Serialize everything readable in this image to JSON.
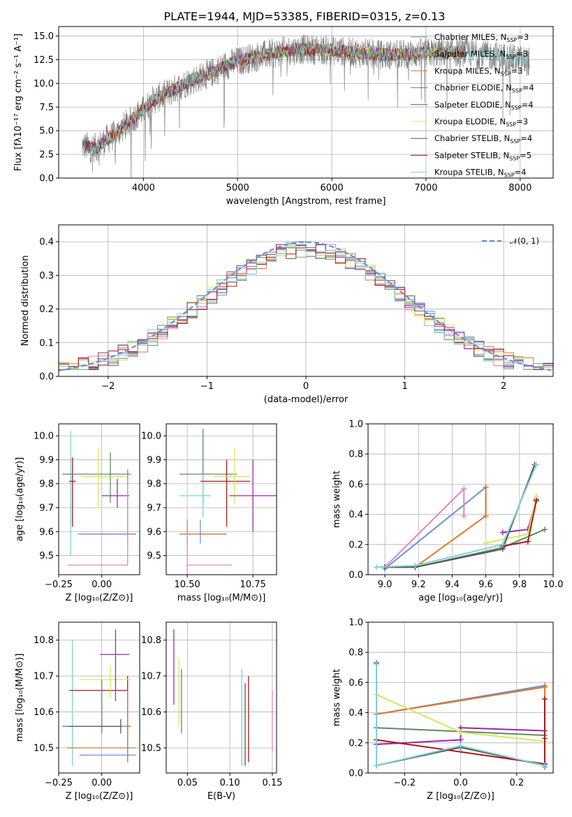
{
  "colors": {
    "chabrier_miles": "#6a8fd8",
    "salpeter_miles": "#e882b8",
    "kroupa_miles": "#dc7a28",
    "chabrier_elodie": "#5f8a5f",
    "salpeter_elodie": "#9a2aa8",
    "kroupa_elodie": "#d4e85a",
    "chabrier_stelib": "#555555",
    "salpeter_stelib": "#a81818",
    "kroupa_stelib": "#7cd0d8",
    "data": "#808080",
    "normal": "#6a8fd8"
  },
  "chart_data": [
    {
      "id": "spectrum",
      "type": "line",
      "title": "PLATE=1944, MJD=53385, FIBERID=0315, z=0.13",
      "xlabel": "wavelength [Angstrom, rest frame]",
      "ylabel": "Flux [fλ10⁻¹⁷ erg cm⁻² s⁻¹ A⁻¹]",
      "xlim": [
        3100,
        8350
      ],
      "ylim": [
        0,
        16
      ],
      "xticks": [
        "4000",
        "5000",
        "6000",
        "7000",
        "8000"
      ],
      "yticks": [
        "0.0",
        "2.5",
        "5.0",
        "7.5",
        "10.0",
        "12.5",
        "15.0"
      ],
      "legend_position": "top-right",
      "legend": [
        "Chabrier MILES, N_SSP=3",
        "Salpeter MILES, N_SSP=3",
        "Kroupa MILES, N_SSP=3",
        "Chabrier ELODIE, N_SSP=4",
        "Salpeter ELODIE, N_SSP=4",
        "Kroupa ELODIE, N_SSP=3",
        "Chabrier STELIB, N_SSP=4",
        "Salpeter STELIB, N_SSP=5",
        "Kroupa STELIB, N_SSP=4"
      ],
      "continuum": {
        "x": [
          3350,
          3500,
          3600,
          3700,
          3800,
          3900,
          4000,
          4100,
          4300,
          4500,
          4700,
          4900,
          5100,
          5300,
          5500,
          5700,
          6000,
          6300,
          6600,
          7000,
          7400,
          7800,
          8100
        ],
        "y": [
          3.4,
          3.2,
          4.0,
          4.6,
          5.5,
          6.4,
          7.2,
          8.2,
          9.2,
          10.3,
          11.0,
          12.0,
          12.6,
          13.0,
          13.4,
          13.6,
          13.5,
          13.2,
          13.0,
          13.2,
          13.3,
          12.8,
          12.3
        ]
      }
    },
    {
      "id": "residuals",
      "type": "bar",
      "xlabel": "(data-model)/error",
      "ylabel": "Normed distribution",
      "xlim": [
        -2.5,
        2.5
      ],
      "ylim": [
        0,
        0.45
      ],
      "xticks": [
        "−2",
        "−1",
        "0",
        "1",
        "2"
      ],
      "yticks": [
        "0.0",
        "0.1",
        "0.2",
        "0.3",
        "0.4"
      ],
      "legend_position": "top-right",
      "normal_label": "𝒩(0, 1)"
    },
    {
      "id": "age_vs_Z",
      "type": "scatter",
      "xlabel": "Z [log₁₀(Z/Z⊙)]",
      "ylabel": "age  [log₁₀(age/yr)]",
      "xlim": [
        -0.25,
        0.22
      ],
      "ylim": [
        9.42,
        10.05
      ],
      "xticks": [
        "−0.25",
        "0.00"
      ],
      "yticks": [
        "9.5",
        "9.6",
        "9.7",
        "9.8",
        "9.9",
        "10.0"
      ],
      "points": [
        {
          "c": "kroupa_stelib",
          "x": -0.18,
          "y": 9.84,
          "xe": [
            -0.2,
            -0.17
          ],
          "ye": [
            9.5,
            10.02
          ]
        },
        {
          "c": "salpeter_stelib",
          "x": -0.17,
          "y": 9.81,
          "xe": [
            -0.19,
            -0.15
          ],
          "ye": [
            9.62,
            9.91
          ]
        },
        {
          "c": "chabrier_elodie",
          "x": 0.05,
          "y": 9.84,
          "xe": [
            -0.23,
            0.17
          ],
          "ye": [
            9.72,
            9.93
          ]
        },
        {
          "c": "kroupa_elodie",
          "x": -0.02,
          "y": 9.83,
          "xe": [
            -0.12,
            0.14
          ],
          "ye": [
            9.7,
            9.95
          ]
        },
        {
          "c": "salpeter_elodie",
          "x": 0.09,
          "y": 9.75,
          "xe": [
            0.0,
            0.16
          ],
          "ye": [
            9.7,
            9.82
          ]
        },
        {
          "c": "kroupa_miles",
          "x": 0.15,
          "y": 9.59,
          "xe": [
            -0.12,
            0.2
          ],
          "ye": [
            9.55,
            9.85
          ]
        },
        {
          "c": "chabrier_miles",
          "x": 0.15,
          "y": 9.59,
          "xe": [
            -0.14,
            0.2
          ],
          "ye": [
            9.58,
            9.86
          ]
        },
        {
          "c": "salpeter_miles",
          "x": 0.15,
          "y": 9.46,
          "xe": [
            -0.2,
            0.15
          ],
          "ye": [
            9.46,
            9.82
          ]
        }
      ]
    },
    {
      "id": "age_vs_mass",
      "type": "scatter",
      "xlabel": "mass [log₁₀(M/M⊙)]",
      "ylabel": "",
      "xlim": [
        10.42,
        10.84
      ],
      "ylim": [
        9.42,
        10.05
      ],
      "xticks": [
        "10.50",
        "10.75"
      ],
      "yticks": [
        "9.5",
        "9.6",
        "9.7",
        "9.8",
        "9.9",
        "10.0"
      ],
      "points": [
        {
          "c": "chabrier_elodie",
          "x": 10.56,
          "y": 9.84,
          "xe": [
            10.47,
            10.69
          ],
          "ye": [
            9.72,
            10.03
          ]
        },
        {
          "c": "kroupa_stelib",
          "x": 10.56,
          "y": 9.75,
          "xe": [
            10.47,
            10.59
          ],
          "ye": [
            9.66,
            9.84
          ]
        },
        {
          "c": "salpeter_stelib",
          "x": 10.65,
          "y": 9.81,
          "xe": [
            10.55,
            10.74
          ],
          "ye": [
            9.62,
            9.9
          ]
        },
        {
          "c": "kroupa_elodie",
          "x": 10.68,
          "y": 9.83,
          "xe": [
            10.6,
            10.74
          ],
          "ye": [
            9.72,
            9.95
          ]
        },
        {
          "c": "salpeter_elodie",
          "x": 10.75,
          "y": 9.75,
          "xe": [
            10.66,
            10.84
          ],
          "ye": [
            9.6,
            9.9
          ]
        },
        {
          "c": "chabrier_miles",
          "x": 10.55,
          "y": 9.59,
          "xe": [
            10.47,
            10.65
          ],
          "ye": [
            9.55,
            9.65
          ]
        },
        {
          "c": "kroupa_miles",
          "x": 10.5,
          "y": 9.59,
          "xe": [
            10.47,
            10.65
          ],
          "ye": [
            9.55,
            9.65
          ]
        },
        {
          "c": "salpeter_miles",
          "x": 10.5,
          "y": 9.46,
          "xe": [
            10.5,
            10.67
          ],
          "ye": [
            9.42,
            9.6
          ]
        }
      ]
    },
    {
      "id": "weight_vs_age",
      "type": "line",
      "xlabel": "age  [log₁₀(age/yr)]",
      "ylabel": "mass weight",
      "xlim": [
        8.9,
        10.0
      ],
      "ylim": [
        0,
        1
      ],
      "xticks": [
        "9.0",
        "9.2",
        "9.4",
        "9.6",
        "9.8",
        "10.0"
      ],
      "yticks": [
        "0.0",
        "0.2",
        "0.4",
        "0.6",
        "0.8",
        "1.0"
      ],
      "series": [
        {
          "c": "chabrier_miles",
          "x": [
            9.0,
            9.6,
            9.6
          ],
          "y": [
            0.04,
            0.58,
            0.39
          ]
        },
        {
          "c": "salpeter_miles",
          "x": [
            9.0,
            9.47,
            9.47
          ],
          "y": [
            0.05,
            0.57,
            0.39
          ]
        },
        {
          "c": "kroupa_miles",
          "x": [
            9.18,
            9.6,
            9.6
          ],
          "y": [
            0.05,
            0.39,
            0.58
          ]
        },
        {
          "c": "chabrier_elodie",
          "x": [
            9.0,
            9.18,
            9.7,
            9.95
          ],
          "y": [
            0.05,
            0.05,
            0.18,
            0.3
          ]
        },
        {
          "c": "salpeter_elodie",
          "x": [
            9.7,
            9.85,
            9.9
          ],
          "y": [
            0.28,
            0.3,
            0.5
          ]
        },
        {
          "c": "kroupa_elodie",
          "x": [
            9.6,
            9.85,
            9.9
          ],
          "y": [
            0.21,
            0.27,
            0.52
          ]
        },
        {
          "c": "chabrier_stelib",
          "x": [
            9.0,
            9.18,
            9.7,
            9.89
          ],
          "y": [
            0.05,
            0.05,
            0.17,
            0.73
          ]
        },
        {
          "c": "salpeter_stelib",
          "x": [
            9.7,
            9.85,
            9.9
          ],
          "y": [
            0.19,
            0.22,
            0.49
          ]
        },
        {
          "c": "kroupa_stelib",
          "x": [
            8.95,
            9.18,
            9.7,
            9.9
          ],
          "y": [
            0.05,
            0.06,
            0.2,
            0.73
          ]
        }
      ]
    },
    {
      "id": "mass_vs_Z",
      "type": "scatter",
      "xlabel": "Z [log₁₀(Z/Z⊙)]",
      "ylabel": "mass [log₁₀(M/M⊙)]",
      "xlim": [
        -0.25,
        0.22
      ],
      "ylim": [
        10.43,
        10.85
      ],
      "xticks": [
        "−0.25",
        "0.00"
      ],
      "yticks": [
        "10.5",
        "10.6",
        "10.7",
        "10.8"
      ],
      "points": [
        {
          "c": "kroupa_stelib",
          "x": -0.17,
          "y": 10.5,
          "xe": [
            -0.2,
            -0.15
          ],
          "ye": [
            10.45,
            10.8
          ]
        },
        {
          "c": "salpeter_stelib",
          "x": 0.15,
          "y": 10.66,
          "xe": [
            -0.19,
            0.15
          ],
          "ye": [
            10.46,
            10.7
          ]
        },
        {
          "c": "chabrier_elodie",
          "x": 0.0,
          "y": 10.56,
          "xe": [
            -0.23,
            0.17
          ],
          "ye": [
            10.54,
            10.69
          ]
        },
        {
          "c": "kroupa_elodie",
          "x": 0.05,
          "y": 10.69,
          "xe": [
            -0.13,
            0.17
          ],
          "ye": [
            10.64,
            10.73
          ]
        },
        {
          "c": "salpeter_elodie",
          "x": 0.08,
          "y": 10.76,
          "xe": [
            -0.01,
            0.16
          ],
          "ye": [
            10.63,
            10.83
          ]
        },
        {
          "c": "kroupa_miles",
          "x": 0.15,
          "y": 10.5,
          "xe": [
            -0.2,
            0.2
          ],
          "ye": [
            10.46,
            10.66
          ]
        },
        {
          "c": "chabrier_miles",
          "x": 0.15,
          "y": 10.48,
          "xe": [
            -0.13,
            0.2
          ],
          "ye": [
            10.46,
            10.53
          ]
        },
        {
          "c": "chabrier_stelib",
          "x": 0.11,
          "y": 10.56,
          "xe": [
            -0.2,
            0.11
          ],
          "ye": [
            10.54,
            10.58
          ]
        }
      ]
    },
    {
      "id": "mass_vs_ebv",
      "type": "scatter",
      "xlabel": "E(B-V)",
      "ylabel": "",
      "xlim": [
        0.025,
        0.155
      ],
      "ylim": [
        10.43,
        10.85
      ],
      "xticks": [
        "0.05",
        "0.10",
        "0.15"
      ],
      "yticks": [
        "10.5",
        "10.6",
        "10.7",
        "10.8"
      ],
      "points": [
        {
          "c": "salpeter_elodie",
          "x": 0.034,
          "y": 10.76,
          "ye": [
            10.62,
            10.83
          ]
        },
        {
          "c": "kroupa_elodie",
          "x": 0.04,
          "y": 10.69,
          "ye": [
            10.56,
            10.75
          ]
        },
        {
          "c": "chabrier_elodie",
          "x": 0.043,
          "y": 10.62,
          "ye": [
            10.54,
            10.72
          ]
        },
        {
          "c": "kroupa_stelib",
          "x": 0.114,
          "y": 10.56,
          "ye": [
            10.45,
            10.72
          ]
        },
        {
          "c": "chabrier_stelib",
          "x": 0.118,
          "y": 10.54,
          "ye": [
            10.45,
            10.68
          ]
        },
        {
          "c": "salpeter_stelib",
          "x": 0.122,
          "y": 10.6,
          "ye": [
            10.46,
            10.7
          ]
        },
        {
          "c": "salpeter_miles",
          "x": 0.15,
          "y": 10.58,
          "ye": [
            10.49,
            10.66
          ]
        }
      ]
    },
    {
      "id": "weight_vs_Z",
      "type": "line",
      "xlabel": "Z [log₁₀(Z/Z⊙)]",
      "ylabel": "mass weight",
      "xlim": [
        -0.33,
        0.33
      ],
      "ylim": [
        0,
        1
      ],
      "xticks": [
        "−0.2",
        "0.0",
        "0.2"
      ],
      "yticks": [
        "0.0",
        "0.2",
        "0.4",
        "0.6",
        "0.8",
        "1.0"
      ],
      "series": [
        {
          "c": "chabrier_miles",
          "x": [
            -0.3,
            0.3,
            0.3
          ],
          "y": [
            0.39,
            0.58,
            0.04
          ]
        },
        {
          "c": "kroupa_miles",
          "x": [
            -0.3,
            0.3,
            0.3
          ],
          "y": [
            0.39,
            0.57,
            0.05
          ]
        },
        {
          "c": "chabrier_elodie",
          "x": [
            -0.3,
            0.3
          ],
          "y": [
            0.3,
            0.25
          ]
        },
        {
          "c": "salpeter_elodie",
          "x": [
            -0.3,
            0.0,
            0.0,
            0.3
          ],
          "y": [
            0.19,
            0.22,
            0.3,
            0.28
          ]
        },
        {
          "c": "kroupa_elodie",
          "x": [
            -0.3,
            0.0,
            0.3
          ],
          "y": [
            0.52,
            0.27,
            0.21
          ]
        },
        {
          "c": "chabrier_stelib",
          "x": [
            -0.3,
            -0.3,
            0.0,
            0.3,
            0.3
          ],
          "y": [
            0.73,
            0.05,
            0.17,
            0.05,
            0.23
          ]
        },
        {
          "c": "salpeter_stelib",
          "x": [
            -0.3,
            0.3,
            0.3
          ],
          "y": [
            0.22,
            0.06,
            0.49
          ]
        },
        {
          "c": "kroupa_stelib",
          "x": [
            -0.3,
            -0.3,
            0.0,
            0.3
          ],
          "y": [
            0.72,
            0.05,
            0.18,
            0.05
          ]
        }
      ]
    }
  ]
}
